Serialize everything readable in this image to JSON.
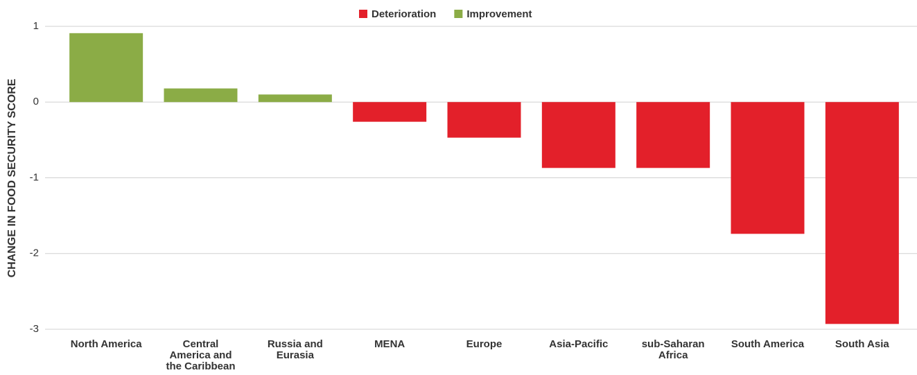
{
  "chart_data": {
    "type": "bar",
    "y_label": "CHANGE IN FOOD SECURITY SCORE",
    "categories": [
      "North America",
      "Central America and the Caribbean",
      "Russia and Eurasia",
      "MENA",
      "Europe",
      "Asia-Pacific",
      "sub-Saharan Africa",
      "South America",
      "South Asia"
    ],
    "series": [
      {
        "name": "Deterioration",
        "color": "#e3202a",
        "values": [
          null,
          null,
          null,
          -0.26,
          -0.47,
          -0.87,
          -0.87,
          -1.74,
          -2.93
        ]
      },
      {
        "name": "Improvement",
        "color": "#8bac46",
        "values": [
          0.91,
          0.18,
          0.1,
          null,
          null,
          null,
          null,
          null,
          null
        ]
      }
    ],
    "ylim": [
      -3,
      1
    ],
    "yticks": [
      1,
      0,
      -1,
      -2,
      -3
    ],
    "grid": true,
    "legend": "top"
  }
}
